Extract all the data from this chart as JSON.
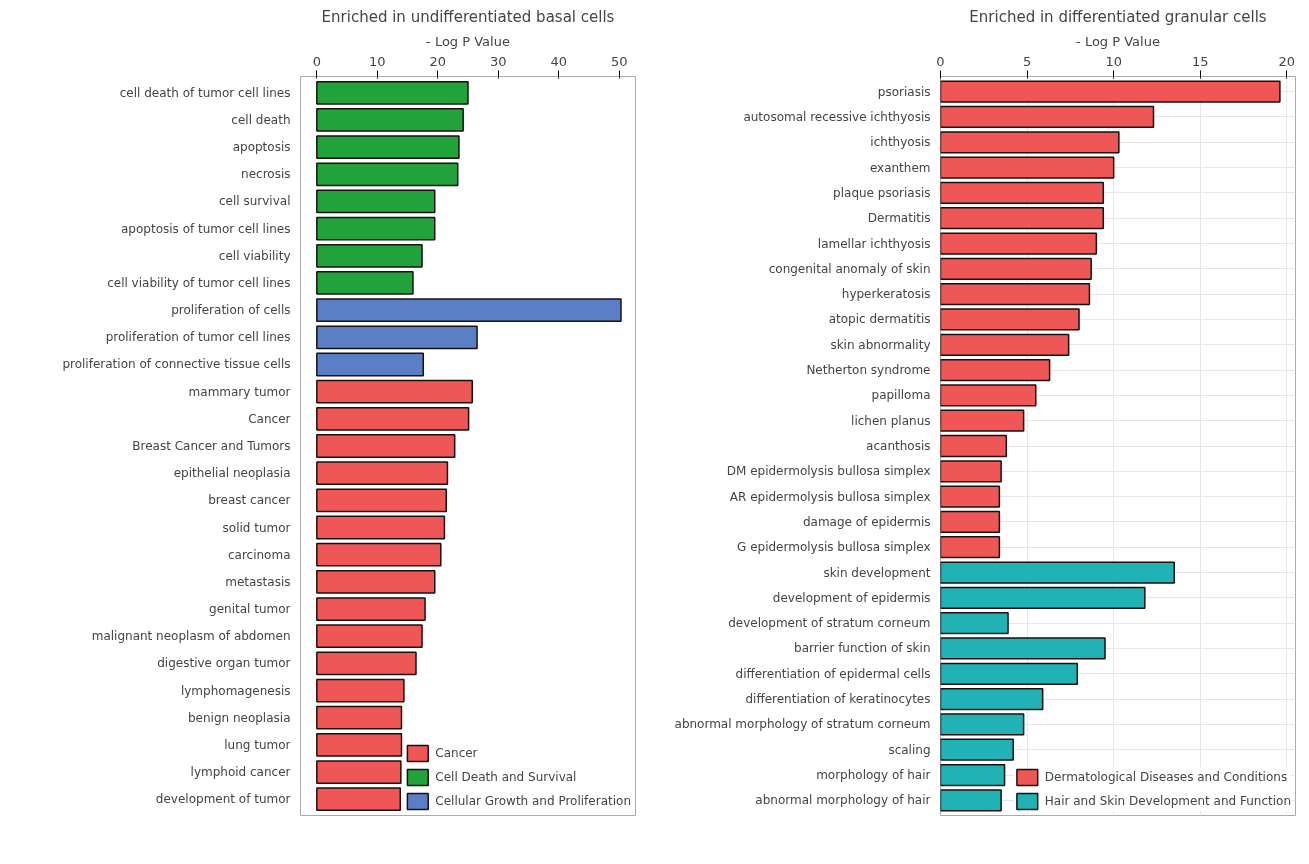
{
  "chart_data": [
    {
      "type": "bar",
      "orientation": "horizontal",
      "title": "Enriched in undifferentiated basal cells",
      "xlabel": "- Log P Value",
      "xlim": [
        -2.7,
        52.7
      ],
      "xticks": [
        0,
        10,
        20,
        30,
        40,
        50
      ],
      "grid": false,
      "legend": "bottom",
      "categories": [
        "cell death of tumor cell lines",
        "cell death",
        "apoptosis",
        "necrosis",
        "cell survival",
        "apoptosis of tumor cell lines",
        "cell viability",
        "cell viability of tumor cell lines",
        "proliferation of cells",
        "proliferation of tumor cell lines",
        "proliferation of connective tissue cells",
        "mammary tumor",
        "Cancer",
        "Breast Cancer and Tumors",
        "epithelial neoplasia",
        "breast cancer",
        "solid tumor",
        "carcinoma",
        "metastasis",
        "genital tumor",
        "malignant neoplasm of abdomen",
        "digestive organ tumor",
        "lymphomagenesis",
        "benign neoplasia",
        "lung tumor",
        "lymphoid cancer",
        "development of tumor"
      ],
      "series": [
        {
          "name": "Cancer",
          "color": "#ef5656",
          "values": [
            null,
            null,
            null,
            null,
            null,
            null,
            null,
            null,
            null,
            null,
            null,
            25.7,
            25.1,
            22.8,
            21.6,
            21.4,
            21.1,
            20.5,
            19.5,
            17.9,
            17.4,
            16.4,
            14.4,
            14.0,
            14.0,
            13.9,
            13.8
          ]
        },
        {
          "name": "Cell Death and Survival",
          "color": "#22a23a",
          "values": [
            25.0,
            24.2,
            23.5,
            23.3,
            19.5,
            19.5,
            17.4,
            15.9,
            null,
            null,
            null,
            null,
            null,
            null,
            null,
            null,
            null,
            null,
            null,
            null,
            null,
            null,
            null,
            null,
            null,
            null,
            null
          ]
        },
        {
          "name": "Cellular Growth and Proliferation",
          "color": "#5b7fc6",
          "values": [
            null,
            null,
            null,
            null,
            null,
            null,
            null,
            null,
            50.3,
            26.5,
            17.6,
            null,
            null,
            null,
            null,
            null,
            null,
            null,
            null,
            null,
            null,
            null,
            null,
            null,
            null,
            null,
            null
          ]
        }
      ]
    },
    {
      "type": "bar",
      "orientation": "horizontal",
      "title": "Enriched in differentiated granular cells",
      "xlabel": "- Log P Value",
      "xlim": [
        0,
        20.5
      ],
      "xticks": [
        0,
        5,
        10,
        15,
        20
      ],
      "grid": true,
      "legend": "bottom",
      "categories": [
        "psoriasis",
        "autosomal recessive ichthyosis",
        "ichthyosis",
        "exanthem",
        "plaque psoriasis",
        "Dermatitis",
        "lamellar ichthyosis",
        "congenital anomaly of skin",
        "hyperkeratosis",
        "atopic dermatitis",
        "skin abnormality",
        "Netherton syndrome",
        "papilloma",
        "lichen planus",
        "acanthosis",
        "DM epidermolysis bullosa simplex",
        "AR epidermolysis bullosa simplex",
        "damage of epidermis",
        "G epidermolysis bullosa simplex",
        "skin development",
        "development of epidermis",
        "development of stratum corneum",
        "barrier function of skin",
        "differentiation of epidermal cells",
        "differentiation of keratinocytes",
        "abnormal morphology of stratum corneum",
        "scaling",
        "morphology of hair",
        "abnormal morphology of hair"
      ],
      "series": [
        {
          "name": "Dermatological Diseases and Conditions",
          "color": "#ef5656",
          "values": [
            19.6,
            12.3,
            10.3,
            10.0,
            9.4,
            9.4,
            9.0,
            8.7,
            8.6,
            8.0,
            7.4,
            6.3,
            5.5,
            4.8,
            3.8,
            3.5,
            3.4,
            3.4,
            3.4,
            null,
            null,
            null,
            null,
            null,
            null,
            null,
            null,
            null,
            null
          ]
        },
        {
          "name": "Hair and Skin Development and Function",
          "color": "#20b2b4",
          "values": [
            null,
            null,
            null,
            null,
            null,
            null,
            null,
            null,
            null,
            null,
            null,
            null,
            null,
            null,
            null,
            null,
            null,
            null,
            null,
            13.5,
            11.8,
            3.9,
            9.5,
            7.9,
            5.9,
            4.8,
            4.2,
            3.7,
            3.5
          ]
        }
      ]
    }
  ]
}
